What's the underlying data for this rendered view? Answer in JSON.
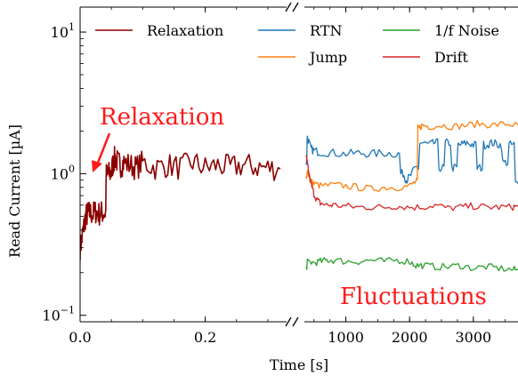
{
  "chart_data": {
    "type": "line",
    "xlabel": "Time [s]",
    "ylabel": "Read Current [µA]",
    "yscale": "log",
    "ylim": [
      0.09,
      15
    ],
    "yticks": [
      {
        "value": 0.1,
        "base": "10",
        "exp": "−1"
      },
      {
        "value": 1,
        "base": "10",
        "exp": "0"
      },
      {
        "value": 10,
        "base": "10",
        "exp": "1"
      }
    ],
    "panels": [
      {
        "xlim": [
          0,
          0.33
        ],
        "xticks": [
          {
            "value": 0,
            "label": "0.0"
          },
          {
            "value": 0.2,
            "label": "0.2"
          }
        ],
        "series": [
          {
            "name": "Relaxation",
            "color": "#8b0000",
            "x": [
              0.0,
              0.003,
              0.006,
              0.009,
              0.012,
              0.015,
              0.02,
              0.025,
              0.03,
              0.035,
              0.04,
              0.043,
              0.046,
              0.05,
              0.053,
              0.056,
              0.06,
              0.065,
              0.07,
              0.08,
              0.09,
              0.1,
              0.12,
              0.14,
              0.16,
              0.18,
              0.2,
              0.22,
              0.24,
              0.26,
              0.28,
              0.3,
              0.32
            ],
            "y": [
              0.3,
              0.35,
              0.42,
              0.5,
              0.52,
              0.53,
              0.52,
              0.54,
              0.52,
              0.53,
              0.53,
              0.98,
              1.0,
              1.02,
              1.2,
              1.3,
              1.2,
              1.15,
              1.2,
              1.15,
              1.1,
              1.2,
              1.1,
              1.15,
              1.1,
              1.2,
              1.1,
              1.15,
              1.1,
              1.15,
              1.12,
              1.1,
              1.08
            ]
          }
        ]
      },
      {
        "xlim": [
          350,
          3700
        ],
        "xticks": [
          {
            "value": 1000,
            "label": "1000"
          },
          {
            "value": 2000,
            "label": "2000"
          },
          {
            "value": 3000,
            "label": "3000"
          }
        ],
        "series": [
          {
            "name": "RTN",
            "color": "#1f77b4",
            "x": [
              380,
              400,
              450,
              500,
              600,
              800,
              1000,
              1200,
              1400,
              1600,
              1800,
              1900,
              1950,
              2000,
              2100,
              2200,
              2300,
              2400,
              2500,
              2600,
              2700,
              2800,
              2900,
              3000,
              3100,
              3200,
              3300,
              3400,
              3500,
              3600,
              3700
            ],
            "y": [
              1.2,
              1.8,
              1.5,
              1.45,
              1.42,
              1.4,
              1.38,
              1.4,
              1.38,
              1.4,
              1.38,
              1.0,
              0.9,
              0.95,
              1.1,
              1.65,
              1.6,
              1.65,
              1.1,
              1.65,
              1.1,
              1.6,
              1.65,
              1.6,
              1.1,
              1.6,
              1.65,
              1.6,
              1.2,
              1.6,
              0.85
            ]
          },
          {
            "name": "Jump",
            "color": "#ff7f0e",
            "x": [
              380,
              400,
              450,
              500,
              600,
              800,
              1000,
              1200,
              1400,
              1600,
              1800,
              2000,
              2100,
              2150,
              2200,
              2300,
              2500,
              2700,
              2900,
              3100,
              3300,
              3500,
              3700
            ],
            "y": [
              0.95,
              1.05,
              0.88,
              0.85,
              0.82,
              0.83,
              0.82,
              0.8,
              0.78,
              0.8,
              0.8,
              0.82,
              0.88,
              2.1,
              2.2,
              2.15,
              2.2,
              2.15,
              2.2,
              2.25,
              2.2,
              2.25,
              2.2
            ]
          },
          {
            "name": "Drift",
            "color": "#d62728",
            "x": [
              380,
              400,
              420,
              450,
              500,
              550,
              600,
              700,
              800,
              1000,
              1200,
              1400,
              1600,
              1800,
              2000,
              2200,
              2400,
              2600,
              2800,
              3000,
              3200,
              3400,
              3600,
              3700
            ],
            "y": [
              1.3,
              1.15,
              1.0,
              0.85,
              0.72,
              0.65,
              0.62,
              0.6,
              0.6,
              0.59,
              0.58,
              0.58,
              0.58,
              0.59,
              0.58,
              0.58,
              0.6,
              0.57,
              0.58,
              0.59,
              0.58,
              0.58,
              0.58,
              0.59
            ]
          },
          {
            "name": "1/f Noise",
            "color": "#2ca02c",
            "x": [
              380,
              400,
              500,
              600,
              700,
              800,
              1000,
              1200,
              1400,
              1600,
              1800,
              2000,
              2100,
              2200,
              2400,
              2600,
              2800,
              3000,
              3200,
              3400,
              3600,
              3700
            ],
            "y": [
              0.21,
              0.24,
              0.235,
              0.24,
              0.245,
              0.245,
              0.24,
              0.24,
              0.245,
              0.24,
              0.245,
              0.24,
              0.225,
              0.225,
              0.22,
              0.22,
              0.225,
              0.215,
              0.22,
              0.215,
              0.21,
              0.21
            ]
          }
        ]
      }
    ],
    "legend": {
      "placement": "top",
      "entries": [
        {
          "label": "Relaxation",
          "color": "#8b0000"
        },
        {
          "label": "RTN",
          "color": "#1f77b4"
        },
        {
          "label": "1/f Noise",
          "color": "#2ca02c"
        },
        {
          "label": "Jump",
          "color": "#ff7f0e"
        },
        {
          "label": "Drift",
          "color": "#d62728"
        }
      ]
    },
    "annotations": [
      {
        "text": "Relaxation",
        "color": "#ff1a1a"
      },
      {
        "text": "Fluctuations",
        "color": "#ff1a1a"
      }
    ]
  }
}
